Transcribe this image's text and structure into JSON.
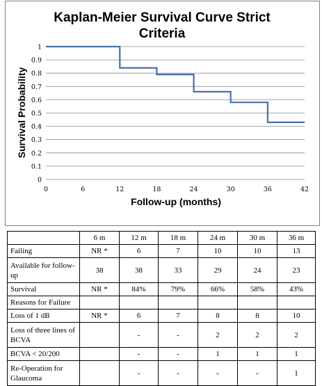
{
  "chart_data": {
    "type": "line",
    "step": true,
    "title_lines": [
      "Kaplan-Meier Survival Curve Strict",
      "Criteria"
    ],
    "xlabel": "Follow-up (months)",
    "ylabel": "Survival Probability",
    "xlim": [
      0,
      42
    ],
    "ylim": [
      0,
      1
    ],
    "xticks": [
      0,
      6,
      12,
      18,
      24,
      30,
      36,
      42
    ],
    "yticks": [
      0,
      0.1,
      0.2,
      0.3,
      0.4,
      0.5,
      0.6,
      0.7,
      0.8,
      0.9,
      1
    ],
    "ytick_labels": [
      "0",
      "0.1",
      "0.2",
      "0.3",
      "0.4",
      "0.5",
      "0.6",
      "0.7",
      "0.8",
      "0.9",
      "1"
    ],
    "grid": "horizontal",
    "line_color": "#4a6fa5",
    "points": [
      {
        "x": 0,
        "y": 1
      },
      {
        "x": 12,
        "y": 1
      },
      {
        "x": 12,
        "y": 0.84
      },
      {
        "x": 18,
        "y": 0.84
      },
      {
        "x": 18,
        "y": 0.79
      },
      {
        "x": 24,
        "y": 0.79
      },
      {
        "x": 24,
        "y": 0.66
      },
      {
        "x": 30,
        "y": 0.66
      },
      {
        "x": 30,
        "y": 0.58
      },
      {
        "x": 36,
        "y": 0.58
      },
      {
        "x": 36,
        "y": 0.43
      },
      {
        "x": 42,
        "y": 0.43
      }
    ]
  },
  "table": {
    "header": [
      "",
      "6 m",
      "12 m",
      "18 m",
      "24 m",
      "30 m",
      "36 m"
    ],
    "rows": [
      {
        "label": "Failing",
        "values": [
          "NR *",
          "6",
          "7",
          "10",
          "10",
          "13"
        ]
      },
      {
        "label": "Available for follow-up",
        "values": [
          "38",
          "38",
          "33",
          "29",
          "24",
          "23"
        ],
        "tall": true
      },
      {
        "label": "Survival",
        "values": [
          "NR *",
          "84%",
          "79%",
          "66%",
          "58%",
          "43%"
        ]
      },
      {
        "label": "Reasons for Failure",
        "values": [
          "",
          "",
          "",
          "",
          "",
          ""
        ]
      },
      {
        "label": "Loss of 1 dB",
        "values": [
          "NR *",
          "6",
          "7",
          "8",
          "8",
          "10"
        ]
      },
      {
        "label": "Loss of three lines of BCVA",
        "values": [
          "",
          "-",
          "-",
          "2",
          "2",
          "2"
        ],
        "tall": true
      },
      {
        "label": "BCVA < 20/200",
        "values": [
          "",
          "-",
          "-",
          "1",
          "1",
          "1"
        ]
      },
      {
        "label": "Re-Operation for Glaucoma",
        "values": [
          "",
          "-",
          "-",
          "-",
          "-",
          "1"
        ],
        "tall": true
      }
    ]
  }
}
